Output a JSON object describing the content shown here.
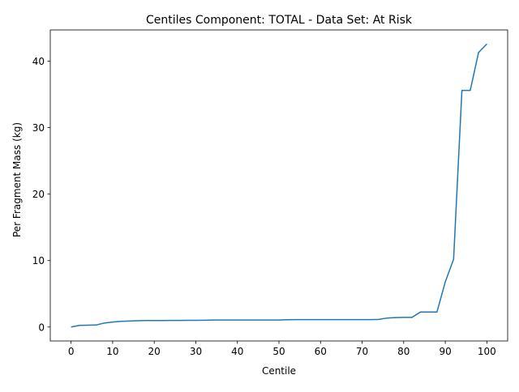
{
  "chart_data": {
    "type": "line",
    "title": "Centiles Component: TOTAL - Data Set: At Risk",
    "xlabel": "Centile",
    "ylabel": "Per Fragment Mass (kg)",
    "xlim": [
      -5,
      105
    ],
    "ylim": [
      -2.1,
      44.7
    ],
    "xticks": [
      0,
      10,
      20,
      30,
      40,
      50,
      60,
      70,
      80,
      90,
      100
    ],
    "yticks": [
      0,
      10,
      20,
      30,
      40
    ],
    "grid": false,
    "legend": "none",
    "series": [
      {
        "color": "#1f77b4",
        "x": [
          0,
          2,
          4,
          6,
          8,
          10,
          12,
          14,
          16,
          18,
          20,
          22,
          24,
          26,
          28,
          30,
          32,
          34,
          36,
          38,
          40,
          42,
          44,
          46,
          48,
          50,
          52,
          54,
          56,
          58,
          60,
          62,
          64,
          66,
          68,
          70,
          72,
          74,
          76,
          78,
          80,
          82,
          84,
          86,
          88,
          90,
          92,
          94,
          96,
          98,
          100
        ],
        "y": [
          0,
          0.25,
          0.28,
          0.3,
          0.6,
          0.75,
          0.85,
          0.9,
          0.95,
          0.97,
          0.98,
          0.98,
          0.99,
          0.99,
          1.0,
          1.0,
          1.02,
          1.05,
          1.05,
          1.05,
          1.05,
          1.05,
          1.05,
          1.05,
          1.05,
          1.05,
          1.1,
          1.12,
          1.12,
          1.12,
          1.12,
          1.12,
          1.12,
          1.12,
          1.12,
          1.12,
          1.12,
          1.15,
          1.35,
          1.42,
          1.45,
          1.45,
          2.25,
          2.25,
          2.25,
          6.8,
          10.2,
          35.6,
          35.6,
          41.3,
          42.6
        ]
      }
    ]
  }
}
